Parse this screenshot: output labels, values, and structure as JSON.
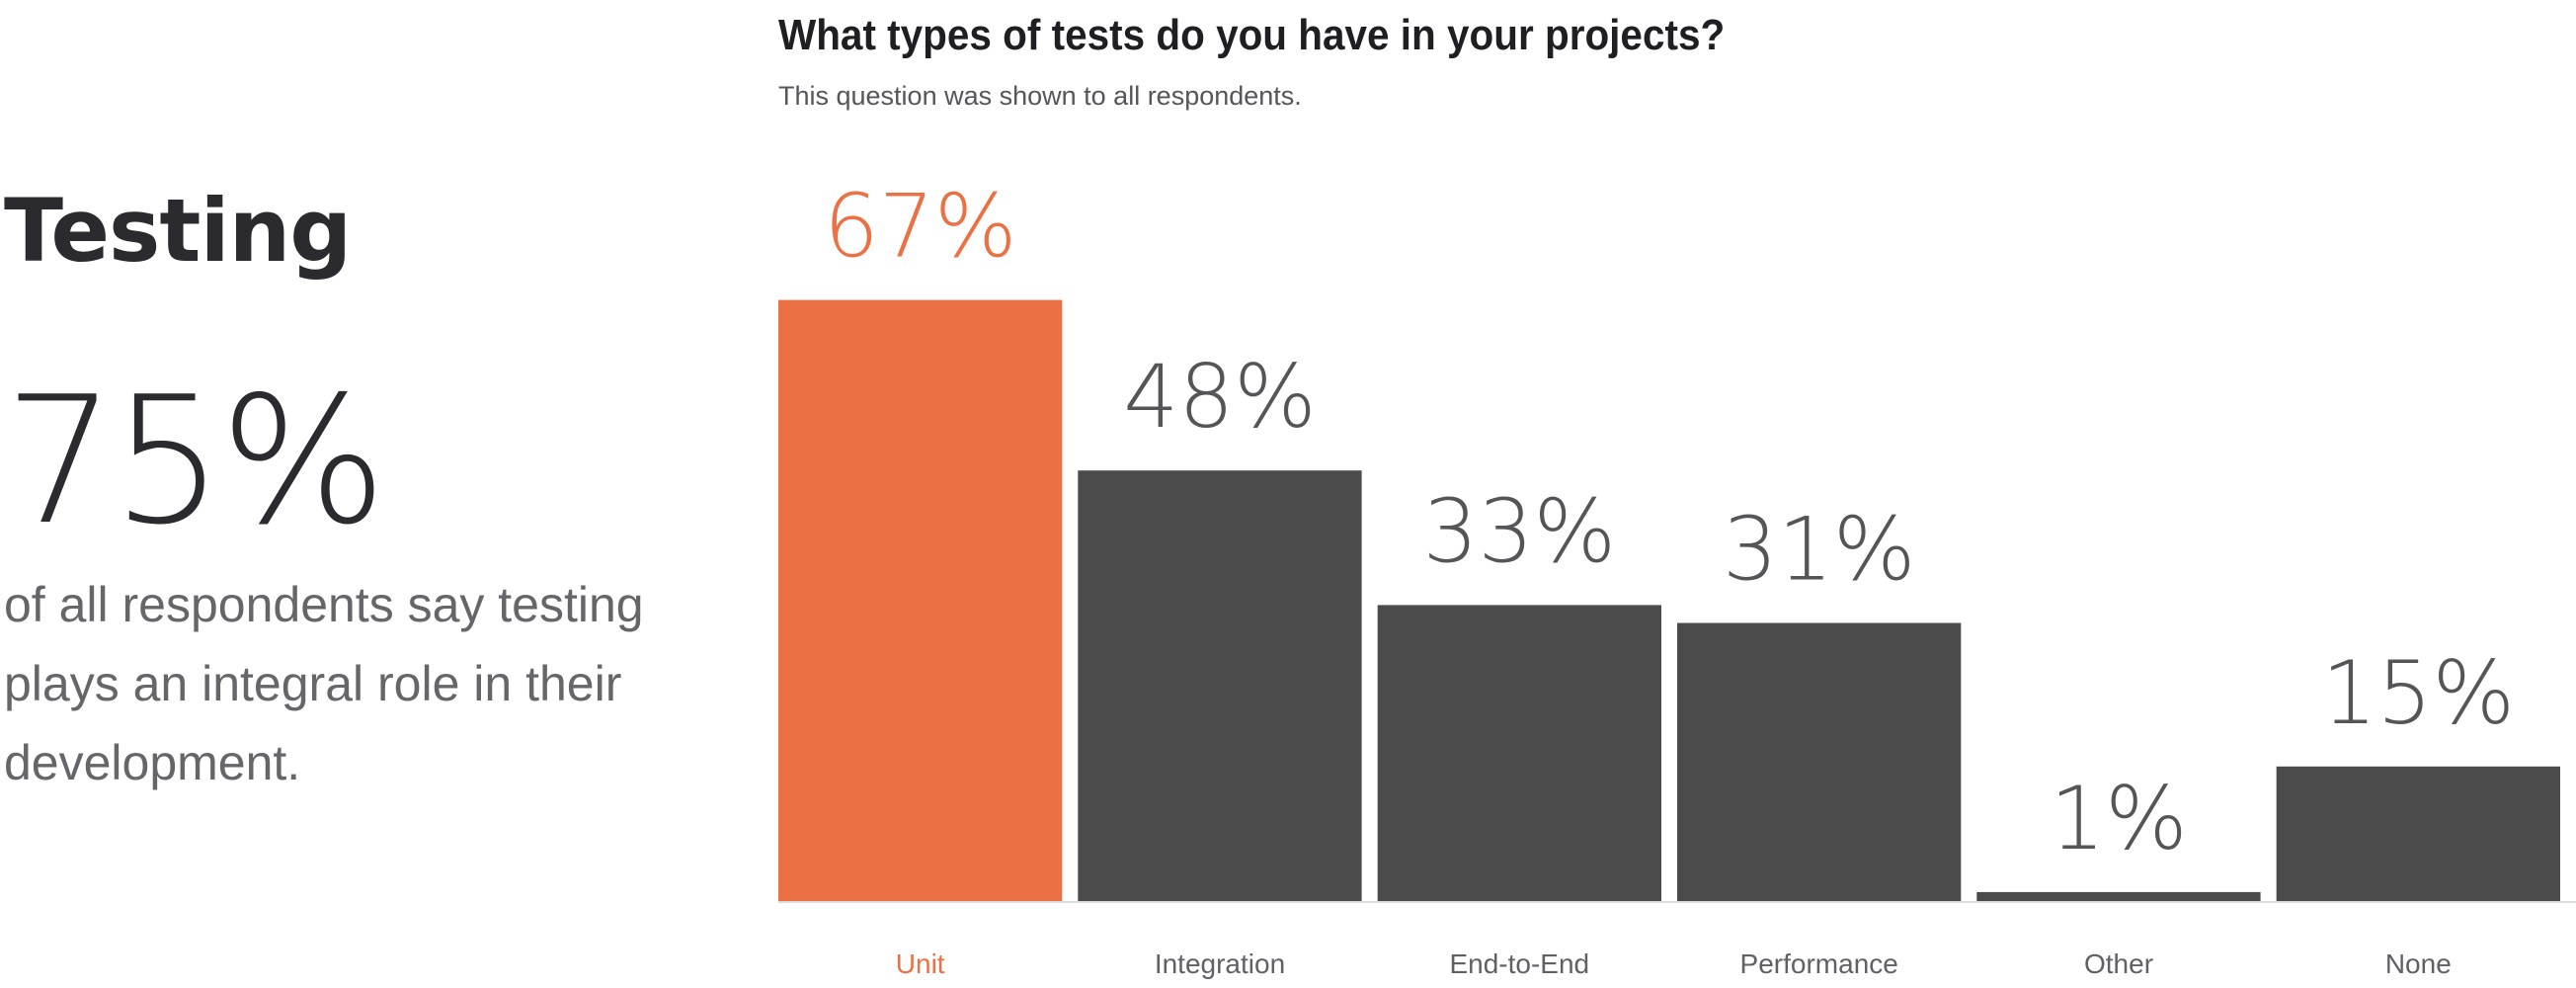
{
  "summary": {
    "title": "Testing",
    "stat_value": "75%",
    "stat_description": "of all respondents say testing plays an integral role in their development."
  },
  "colors": {
    "highlight": "#eb7043",
    "bar": "#4b4b4b",
    "value_label": "#555558",
    "category_label": "#606065",
    "title": "#1f1f23"
  },
  "chart_data": {
    "type": "bar",
    "title": "What types of tests do you have in your projects?",
    "subtitle": "This question was shown to all respondents.",
    "xlabel": "",
    "ylabel": "",
    "grid": false,
    "legend": "none",
    "unit": "%",
    "ylim": [
      0,
      100
    ],
    "categories": [
      "Unit",
      "Integration",
      "End-to-End",
      "Performance",
      "Other",
      "None"
    ],
    "values": [
      67,
      48,
      33,
      31,
      1,
      15
    ],
    "value_labels": [
      "67%",
      "48%",
      "33%",
      "31%",
      "1%",
      "15%"
    ],
    "highlighted_category": "Unit"
  }
}
